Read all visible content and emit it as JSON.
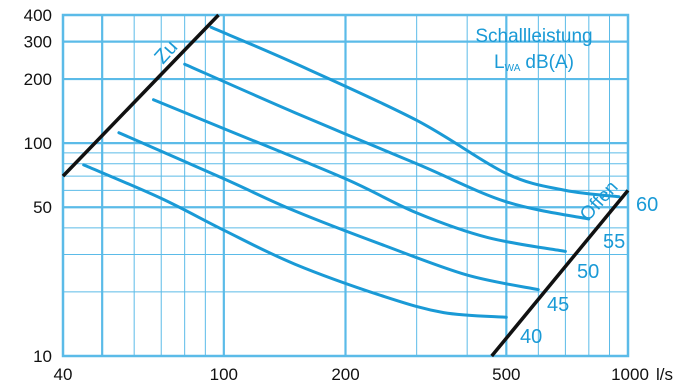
{
  "chart_data": {
    "type": "line",
    "x_scale": "log",
    "y_scale": "log",
    "xlim": [
      40,
      1000
    ],
    "ylim": [
      10,
      400
    ],
    "x_ticks": [
      {
        "value": 40,
        "label": "40"
      },
      {
        "value": 100,
        "label": "100"
      },
      {
        "value": 200,
        "label": "200"
      },
      {
        "value": 500,
        "label": "500"
      },
      {
        "value": 1000,
        "label": "1000"
      }
    ],
    "x_unit": "l/s",
    "y_ticks": [
      {
        "value": 10,
        "label": "10"
      },
      {
        "value": 50,
        "label": "50"
      },
      {
        "value": 100,
        "label": "100"
      },
      {
        "value": 200,
        "label": "200"
      },
      {
        "value": 300,
        "label": "300"
      },
      {
        "value": 400,
        "label": "400"
      }
    ],
    "legend_title": [
      "Schallleistung",
      "LWA dB(A)"
    ],
    "legend_title_parts": {
      "line1": "Schallleistung",
      "sym": "L",
      "sub": "WA",
      "unit": "dB(A)"
    },
    "grid": true,
    "colors": {
      "grid": "#5bbbe8",
      "curves": "#1a9ad6",
      "limits": "#111111",
      "labels": "#1a9ad6"
    },
    "limit_lines": [
      {
        "name": "Zu",
        "points": [
          [
            40,
            70
          ],
          [
            97,
            400
          ]
        ]
      },
      {
        "name": "Offen",
        "points": [
          [
            460,
            10
          ],
          [
            1000,
            60
          ]
        ]
      }
    ],
    "series": [
      {
        "name": "40",
        "points": [
          [
            45,
            79
          ],
          [
            70,
            55
          ],
          [
            100,
            39
          ],
          [
            150,
            27
          ],
          [
            250,
            19
          ],
          [
            350,
            16
          ],
          [
            500,
            15.2
          ]
        ]
      },
      {
        "name": "45",
        "points": [
          [
            55,
            112
          ],
          [
            100,
            68
          ],
          [
            150,
            48
          ],
          [
            250,
            33
          ],
          [
            400,
            24
          ],
          [
            600,
            20.5
          ]
        ]
      },
      {
        "name": "50",
        "points": [
          [
            67,
            160
          ],
          [
            100,
            117
          ],
          [
            200,
            68
          ],
          [
            300,
            47
          ],
          [
            450,
            36
          ],
          [
            700,
            31
          ]
        ]
      },
      {
        "name": "55",
        "points": [
          [
            80,
            235
          ],
          [
            150,
            139
          ],
          [
            300,
            80
          ],
          [
            500,
            53
          ],
          [
            800,
            44
          ]
        ]
      },
      {
        "name": "60",
        "points": [
          [
            93,
            350
          ],
          [
            150,
            237
          ],
          [
            300,
            128
          ],
          [
            500,
            72
          ],
          [
            700,
            60
          ],
          [
            950,
            56
          ]
        ]
      }
    ]
  }
}
